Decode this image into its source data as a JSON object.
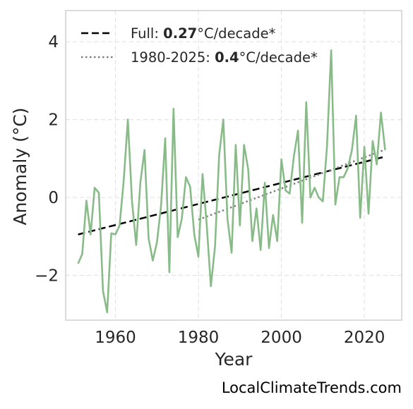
{
  "chart_data": {
    "type": "line",
    "title": "",
    "xlabel": "Year",
    "ylabel": "Anomaly (°C)",
    "xlim": [
      1948,
      2029
    ],
    "ylim": [
      -3.15,
      4.8
    ],
    "x_ticks": [
      1960,
      1980,
      2000,
      2020
    ],
    "x_tick_labels": [
      "1960",
      "1980",
      "2000",
      "2020"
    ],
    "y_ticks": [
      -2,
      0,
      2,
      4
    ],
    "y_tick_labels": [
      "−2",
      "0",
      "2",
      "4"
    ],
    "grid": true,
    "legend_position": "top-left",
    "series": [
      {
        "color": "#88bb88",
        "x": [
          1951,
          1952,
          1953,
          1954,
          1955,
          1956,
          1957,
          1958,
          1959,
          1960,
          1961,
          1962,
          1963,
          1964,
          1965,
          1966,
          1967,
          1968,
          1969,
          1970,
          1971,
          1972,
          1973,
          1974,
          1975,
          1976,
          1977,
          1978,
          1979,
          1980,
          1981,
          1982,
          1983,
          1984,
          1985,
          1986,
          1987,
          1988,
          1989,
          1990,
          1991,
          1992,
          1993,
          1994,
          1995,
          1996,
          1997,
          1998,
          1999,
          2000,
          2001,
          2002,
          2003,
          2004,
          2005,
          2006,
          2007,
          2008,
          2009,
          2010,
          2011,
          2012,
          2013,
          2014,
          2015,
          2016,
          2017,
          2018,
          2019,
          2020,
          2021,
          2022,
          2023,
          2024,
          2025
        ],
        "y": [
          -1.7,
          -1.45,
          -0.08,
          -0.95,
          0.25,
          0.12,
          -2.4,
          -2.95,
          -0.92,
          -0.95,
          -0.72,
          0.45,
          2.0,
          -0.1,
          -1.22,
          0.38,
          1.22,
          -1.05,
          -1.62,
          -1.15,
          -0.2,
          1.52,
          -1.92,
          2.28,
          -1.02,
          -0.55,
          0.52,
          0.28,
          -0.95,
          -1.52,
          0.6,
          -0.7,
          -2.28,
          -1.25,
          1.08,
          2.0,
          -0.55,
          -1.42,
          1.35,
          -0.72,
          1.35,
          0.72,
          -1.12,
          -0.28,
          -1.35,
          0.38,
          -1.3,
          -0.45,
          -1.12,
          0.98,
          0.18,
          0.1,
          1.05,
          1.72,
          -0.65,
          2.45,
          0.0,
          0.25,
          0.0,
          -0.1,
          1.32,
          3.78,
          -0.18,
          0.52,
          0.52,
          0.75,
          1.22,
          2.1,
          -0.52,
          1.3,
          -0.42,
          1.45,
          0.85,
          2.18,
          1.22
        ]
      }
    ],
    "trends": [
      {
        "label_prefix": "Full: ",
        "label_value": "0.27",
        "label_suffix": "°C/decade*",
        "style": "dashed",
        "color": "#000000",
        "x": [
          1951,
          2025
        ],
        "y": [
          -0.95,
          1.05
        ]
      },
      {
        "label_prefix": "1980-2025: ",
        "label_value": "0.4",
        "label_suffix": "°C/decade*",
        "style": "dotted",
        "color": "#808080",
        "x": [
          1980,
          2025
        ],
        "y": [
          -0.57,
          1.23
        ]
      }
    ]
  },
  "watermark": "LocalClimateTrends.com"
}
